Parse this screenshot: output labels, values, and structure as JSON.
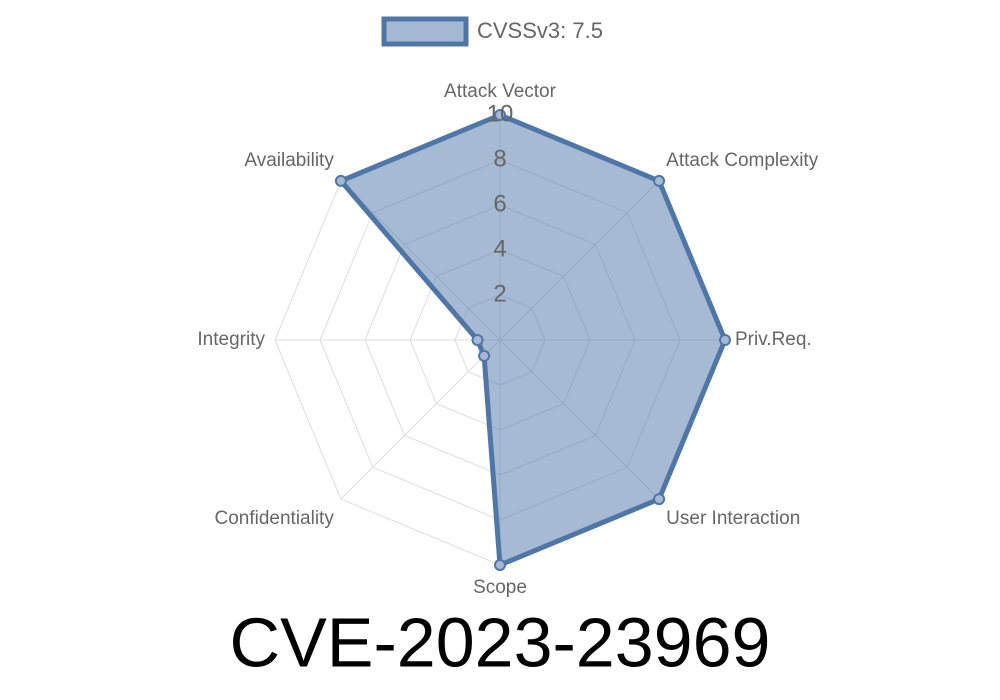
{
  "chart_data": {
    "type": "radar",
    "title": "CVE-2023-23969",
    "categories": [
      "Attack Vector",
      "Attack Complexity",
      "Priv.Req.",
      "User Interaction",
      "Scope",
      "Confidentiality",
      "Integrity",
      "Availability"
    ],
    "series": [
      {
        "name": "CVSSv3: 7.5",
        "color": "#4e76a8",
        "values": [
          10,
          10,
          10,
          10,
          10,
          1,
          1,
          10
        ]
      }
    ],
    "rlim": [
      0,
      10
    ],
    "rticks": [
      2,
      4,
      6,
      8,
      10
    ],
    "grid": true,
    "legend": "top"
  }
}
